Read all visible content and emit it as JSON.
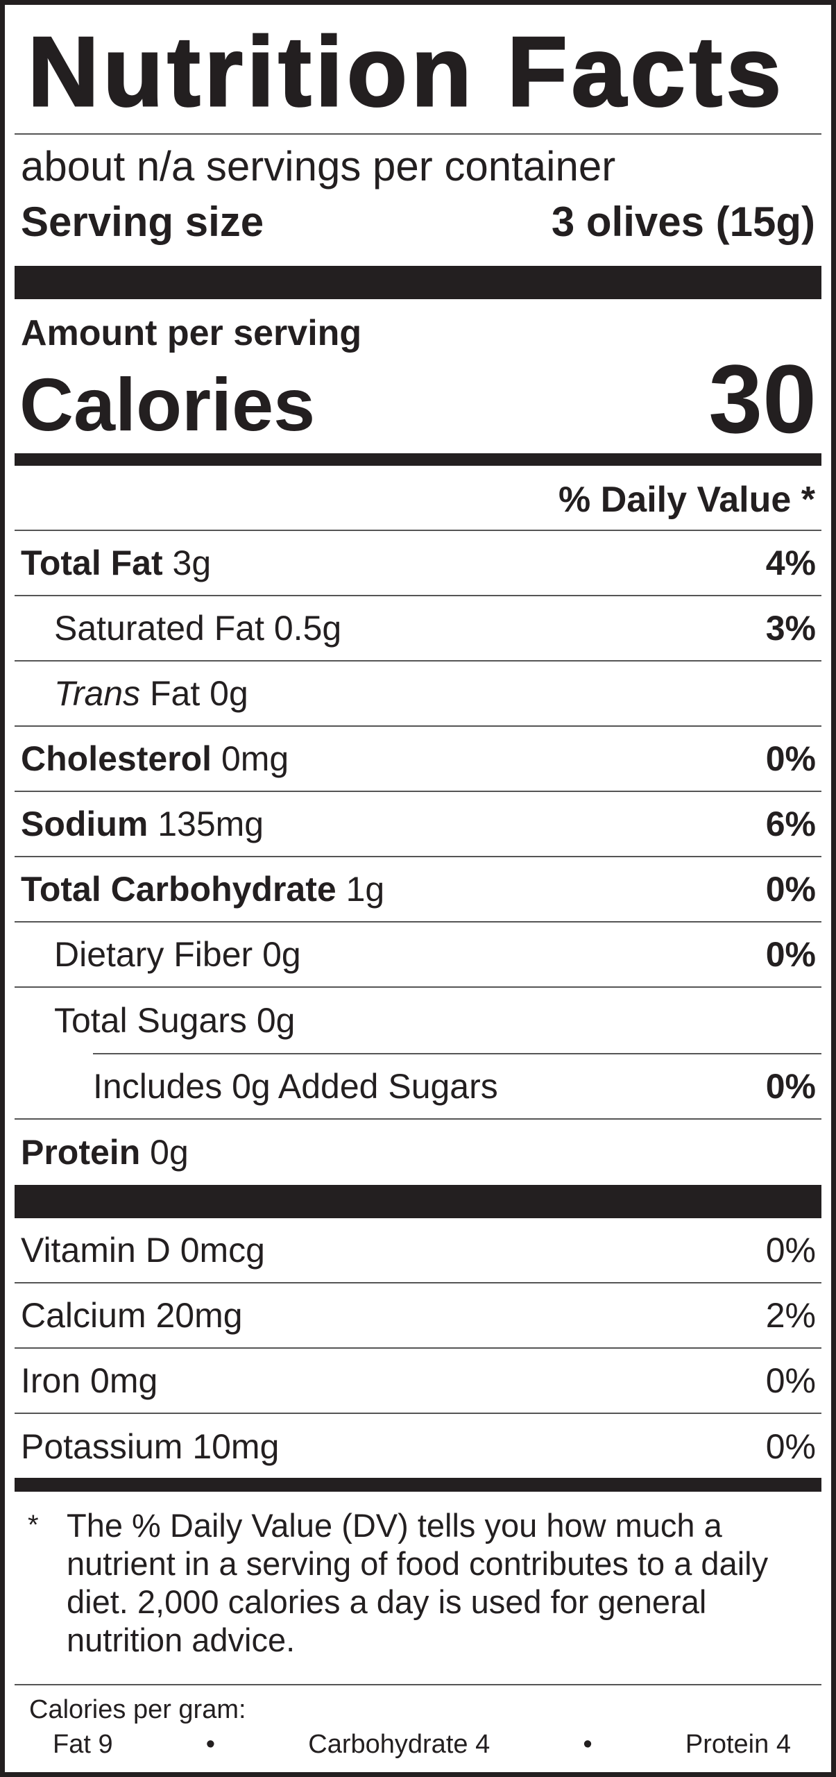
{
  "title": "Nutrition Facts",
  "servings_per_container": "about n/a servings per container",
  "serving_size_label": "Serving size",
  "serving_size_value": "3 olives (15g)",
  "amount_per_serving": "Amount per serving",
  "calories_label": "Calories",
  "calories_value": "30",
  "dv_header": "% Daily Value *",
  "nutrients": [
    {
      "name": "Total Fat",
      "amount": "3g",
      "dv": "4%"
    },
    {
      "name": "Saturated Fat",
      "amount": "0.5g",
      "dv": "3%"
    },
    {
      "name": "Trans",
      "name_suffix": "Fat",
      "amount": "0g",
      "dv": ""
    },
    {
      "name": "Cholesterol",
      "amount": "0mg",
      "dv": "0%"
    },
    {
      "name": "Sodium",
      "amount": "135mg",
      "dv": "6%"
    },
    {
      "name": "Total Carbohydrate",
      "amount": "1g",
      "dv": "0%"
    },
    {
      "name": "Dietary Fiber",
      "amount": "0g",
      "dv": "0%"
    },
    {
      "name": "Total Sugars",
      "amount": "0g",
      "dv": ""
    },
    {
      "name": "Includes 0g Added Sugars",
      "amount": "",
      "dv": "0%"
    },
    {
      "name": "Protein",
      "amount": "0g",
      "dv": ""
    }
  ],
  "vitamins": [
    {
      "label": "Vitamin D 0mcg",
      "dv": "0%"
    },
    {
      "label": "Calcium 20mg",
      "dv": "2%"
    },
    {
      "label": "Iron 0mg",
      "dv": "0%"
    },
    {
      "label": "Potassium 10mg",
      "dv": "0%"
    }
  ],
  "footnote_marker": "*",
  "footnote": "The % Daily Value (DV) tells you how much a nutrient in a serving of food contributes to a daily diet. 2,000 calories a day is used for general nutrition advice.",
  "calories_per_gram": {
    "label": "Calories per gram:",
    "fat": "Fat 9",
    "carb": "Carbohydrate 4",
    "protein": "Protein 4",
    "separator": "•"
  },
  "colors": {
    "ink": "#231f20",
    "rule": "#555555"
  }
}
